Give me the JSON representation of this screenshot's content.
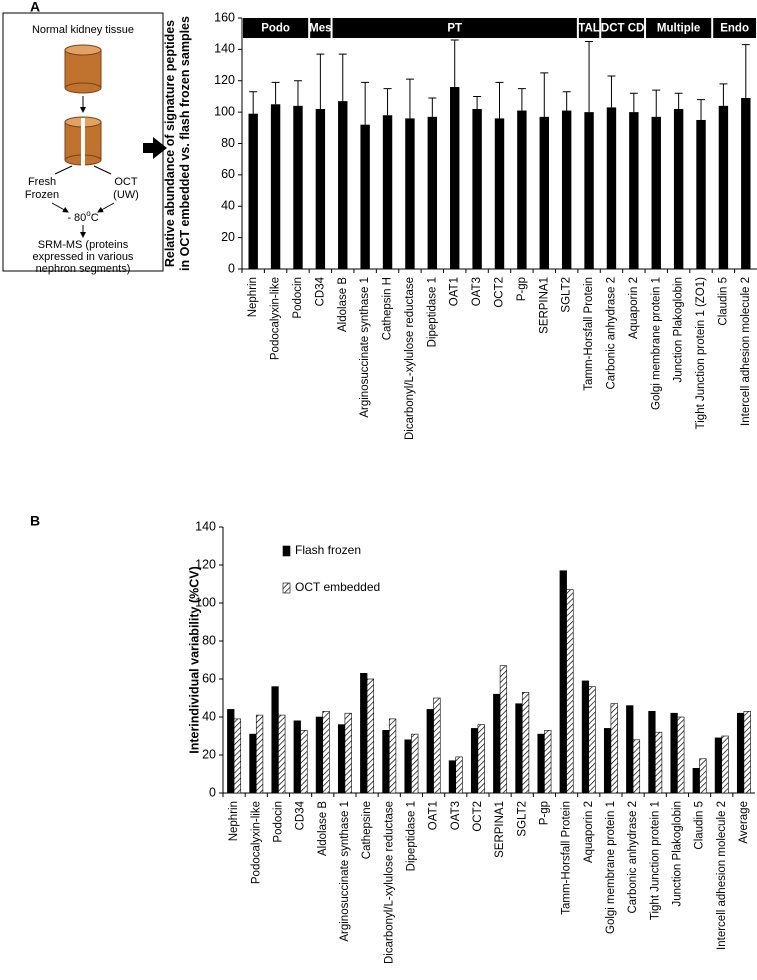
{
  "panel_labels": [
    "A",
    "B"
  ],
  "diagram": {
    "title": "Normal kidney tissue",
    "left_branch": [
      "Fresh",
      "Frozen"
    ],
    "right_branch": [
      "OCT",
      "(UW)"
    ],
    "storage": "- 80",
    "storage_sup": "o",
    "storage_unit": "C",
    "method": [
      "SRM-MS (proteins",
      "expressed in various",
      "nephron segments)"
    ]
  },
  "chart_data": [
    {
      "type": "bar",
      "ylabel": [
        "Relative abundance of signature peptides",
        "in OCT embedded vs. flash frozen samples"
      ],
      "categories": [
        "Nephrin",
        "Podocalyxin-like",
        "Podocin",
        "CD34",
        "Aldolase B",
        "Arginosuccinate synthase 1",
        "Cathepsin H",
        "Dicarbonyl/L-xylulose reductase",
        "Dipeptidase 1",
        "OAT1",
        "OAT3",
        "OCT2",
        "P-gp",
        "SERPINA1",
        "SGLT2",
        "Tamm-Horsfall Protein",
        "Carbonic anhydrase 2",
        "Aquaporin 2",
        "Golgi membrane protein 1",
        "Junction Plakoglobin",
        "Tight Junction protein 1 (ZO1)",
        "Claudin 5",
        "Intercell adhesion molecule 2"
      ],
      "values": [
        99,
        105,
        104,
        102,
        107,
        92,
        98,
        96,
        97,
        116,
        102,
        96,
        101,
        97,
        101,
        100,
        103,
        100,
        97,
        102,
        95,
        104,
        109
      ],
      "errors": [
        14,
        14,
        16,
        35,
        30,
        27,
        17,
        25,
        12,
        30,
        8,
        23,
        14,
        28,
        12,
        45,
        20,
        12,
        17,
        10,
        13,
        14,
        34
      ],
      "color": "#000000",
      "groups": [
        {
          "label": "Podo",
          "categories": [
            "Nephrin",
            "Podocalyxin-like",
            "Podocin"
          ]
        },
        {
          "label": "Mes",
          "categories": [
            "CD34"
          ]
        },
        {
          "label": "PT",
          "categories": [
            "Aldolase B",
            "Arginosuccinate synthase 1",
            "Cathepsin H",
            "Dicarbonyl/L-xylulose reductase",
            "Dipeptidase 1",
            "OAT1",
            "OAT3",
            "OCT2",
            "P-gp",
            "SERPINA1",
            "SGLT2"
          ]
        },
        {
          "label": "TAL",
          "categories": [
            "Tamm-Horsfall Protein"
          ]
        },
        {
          "label": "DCT CD",
          "categories": [
            "Carbonic anhydrase 2",
            "Aquaporin 2"
          ]
        },
        {
          "label": "Multiple",
          "categories": [
            "Golgi membrane protein 1",
            "Junction Plakoglobin",
            "Tight Junction protein 1 (ZO1)"
          ]
        },
        {
          "label": "Endo",
          "categories": [
            "Claudin 5",
            "Intercell adhesion molecule 2"
          ]
        }
      ],
      "ylim": [
        0,
        160
      ],
      "yticks": [
        0,
        20,
        40,
        60,
        80,
        100,
        120,
        140,
        160
      ]
    },
    {
      "type": "grouped_bar",
      "ylabel": [
        "Interindividual variability (%CV)"
      ],
      "categories": [
        "Nephrin",
        "Podocalyxin-like",
        "Podocin",
        "CD34",
        "Aldolase B",
        "Arginosuccinate synthase 1",
        "Cathepsine",
        "Dicarbonyl/L-xylulose reductase",
        "Dipeptidase 1",
        "OAT1",
        "OAT3",
        "OCT2",
        "SERPINA1",
        "SGLT2",
        "P-gp",
        "Tamm-Horsfall Protein",
        "Aquaporin 2",
        "Golgi membrane protein 1",
        "Carbonic anhydrase 2",
        "Tight Junction protein 1",
        "Junction Plakoglobin",
        "Claudin 5",
        "Intercell adhesion molecule 2",
        "Average"
      ],
      "series": [
        {
          "name": "Flash frozen",
          "color": "#000000",
          "pattern": "solid",
          "values": [
            44,
            31,
            56,
            38,
            40,
            36,
            63,
            33,
            28,
            44,
            17,
            34,
            52,
            47,
            31,
            117,
            59,
            34,
            46,
            43,
            42,
            13,
            29,
            42
          ]
        },
        {
          "name": "OCT embedded",
          "color": "#000000",
          "pattern": "hatch",
          "values": [
            39,
            41,
            41,
            33,
            43,
            42,
            60,
            39,
            31,
            50,
            19,
            36,
            67,
            53,
            33,
            107,
            56,
            47,
            28,
            32,
            40,
            18,
            30,
            43
          ]
        }
      ],
      "legend": "upper left",
      "ylim": [
        0,
        140
      ],
      "yticks": [
        0,
        20,
        40,
        60,
        80,
        100,
        120,
        140
      ]
    }
  ]
}
